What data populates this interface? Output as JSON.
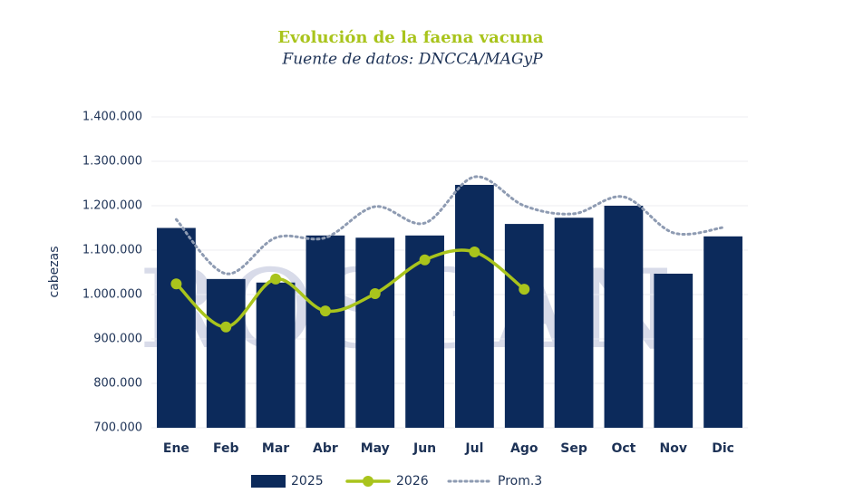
{
  "chart_data": {
    "type": "bar",
    "title": "Evolución de la faena vacuna",
    "subtitle": "Fuente de datos: DNCCA/MAGyP",
    "watermark": "ROSGAN",
    "y_label": "cabezas",
    "categories": [
      "Ene",
      "Feb",
      "Mar",
      "Abr",
      "May",
      "Jun",
      "Jul",
      "Ago",
      "Sep",
      "Oct",
      "Nov",
      "Dic"
    ],
    "series": [
      {
        "name": "2025",
        "type": "bar",
        "color": "#0c2a5b",
        "values": [
          1150000,
          1035000,
          1027000,
          1133000,
          1128000,
          1133000,
          1247000,
          1159000,
          1173000,
          1200000,
          1047000,
          1131000
        ]
      },
      {
        "name": "2026",
        "type": "line",
        "color": "#a9c41c",
        "markers": true,
        "values": [
          1024000,
          927000,
          1035000,
          963000,
          1002000,
          1078000,
          1096000,
          1012000,
          null,
          null,
          null,
          null
        ]
      },
      {
        "name": "Prom.3",
        "type": "line",
        "color": "#8e9bb2",
        "dotted": true,
        "values": [
          1169000,
          1047000,
          1128000,
          1128000,
          1198000,
          1161000,
          1265000,
          1200000,
          1182000,
          1220000,
          1139000,
          1151000
        ]
      }
    ],
    "ylim": [
      700000,
      1400000
    ],
    "yticks": [
      {
        "value": 700000,
        "label": "700.000"
      },
      {
        "value": 800000,
        "label": "800.000"
      },
      {
        "value": 900000,
        "label": "900.000"
      },
      {
        "value": 1000000,
        "label": "1.000.000"
      },
      {
        "value": 1100000,
        "label": "1.100.000"
      },
      {
        "value": 1200000,
        "label": "1.200.000"
      },
      {
        "value": 1300000,
        "label": "1.300.000"
      },
      {
        "value": 1400000,
        "label": "1.400.000"
      }
    ],
    "grid": true,
    "legend": "bottom"
  }
}
